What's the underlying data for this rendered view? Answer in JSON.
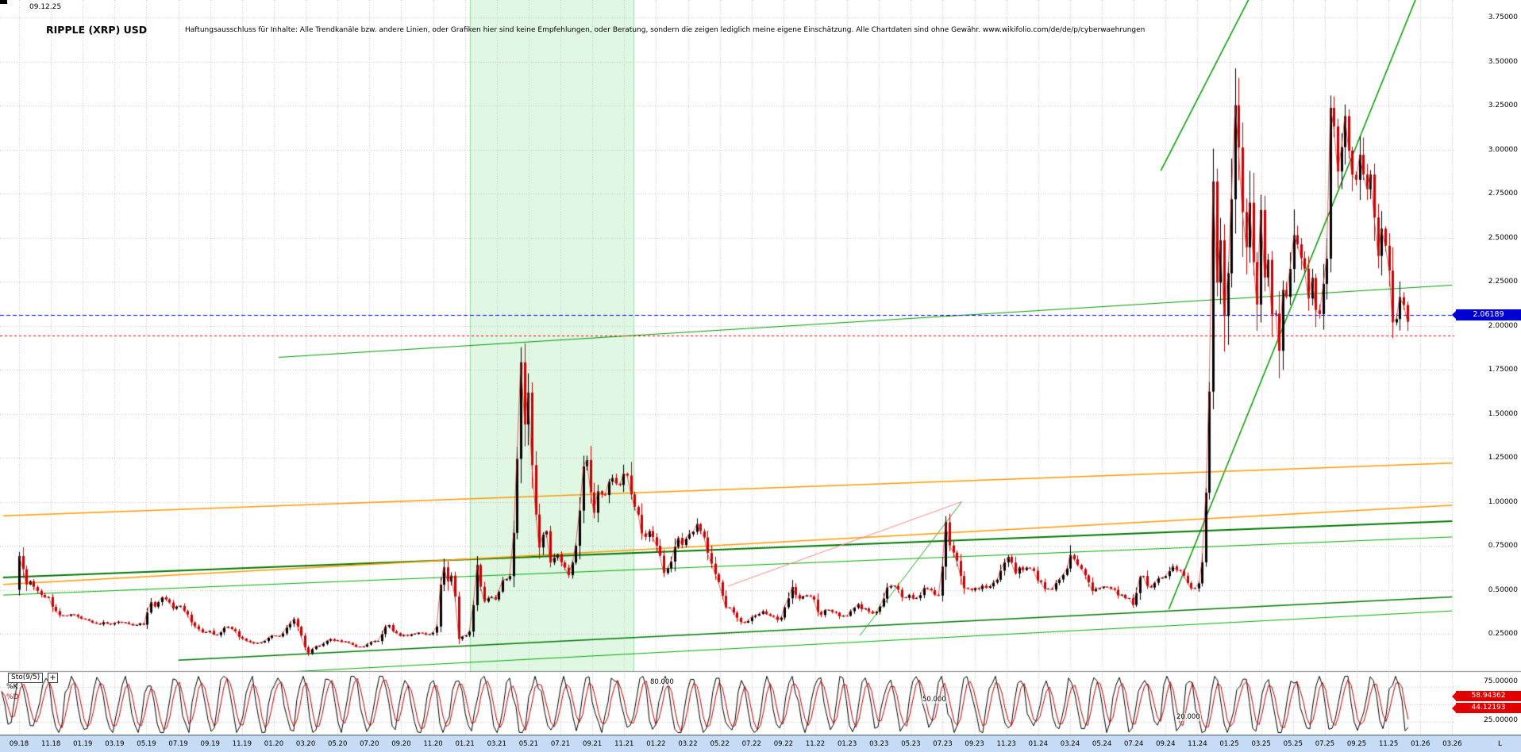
{
  "header": {
    "date": "09.12.25",
    "title": "RIPPLE (XRP) USD",
    "disclaimer": "Haftungsausschluss für Inhalte: Alle Trendkanäle bzw. andere Linien, oder Grafiken hier sind keine Empfehlungen, oder Beratung, sondern die zeigen lediglich meine eigene Einschätzung. Alle Chartdaten sind ohne Gewähr. www.wikifolio.com/de/de/p/cyberwaehrungen"
  },
  "price_axis": {
    "labels": [
      "3.75000",
      "3.50000",
      "3.25000",
      "3.00000",
      "2.75000",
      "2.50000",
      "2.25000",
      "2.00000",
      "1.75000",
      "1.50000",
      "1.25000",
      "1.00000",
      "0.75000",
      "0.50000",
      "0.25000"
    ],
    "current_badge": "2.06189",
    "badge_color": "#0000d0"
  },
  "indicator": {
    "label": "Sto(9/5)",
    "add_button": "+",
    "k_label": "%K",
    "d_label": "%D",
    "level_labels": [
      "80.000",
      "50.000",
      "20.000"
    ],
    "axis_labels": [
      "75.00000",
      "25.00000"
    ],
    "k_value": "58.94362",
    "d_value": "44.12193",
    "k_color": "#000000",
    "d_color": "#cc0000",
    "value_badge_color": "#e00000"
  },
  "time_axis": {
    "labels": [
      "09.18",
      "11.18",
      "01.19",
      "03.19",
      "05.19",
      "07.19",
      "09.19",
      "11.19",
      "01.20",
      "03.20",
      "05.20",
      "07.20",
      "09.20",
      "11.20",
      "01.21",
      "03.21",
      "05.21",
      "07.21",
      "09.21",
      "11.21",
      "01.22",
      "03.22",
      "05.22",
      "07.22",
      "09.22",
      "11.22",
      "01.23",
      "03.23",
      "05.23",
      "07.23",
      "09.23",
      "11.23",
      "01.24",
      "03.24",
      "05.24",
      "07.24",
      "09.24",
      "11.24",
      "01.25",
      "03.25",
      "05.25",
      "07.25",
      "09.25",
      "11.25",
      "01.26",
      "03.26"
    ],
    "background": "#c6dcf4"
  },
  "footer": {
    "right_label": "L"
  },
  "chart_data": {
    "type": "candlestick",
    "title": "RIPPLE (XRP) USD",
    "x_start_month": "09.18",
    "x_end_month": "03.26",
    "ylim": [
      0.05,
      3.8
    ],
    "y_gridstep": 0.25,
    "grid": true,
    "candle_up_color": "#000000",
    "candle_down_color": "#cc0000",
    "close_line_color": "#dd2222",
    "current_price_line": {
      "value": 2.06189,
      "color": "#0000ee",
      "style": "dashed"
    },
    "reference_line": {
      "value": 1.945,
      "color": "#ee0000",
      "style": "dashed"
    },
    "highlight_band": {
      "from": "01.21",
      "to": "11.21",
      "color": "rgba(198,240,205,0.55)",
      "edge_color": "rgba(150,215,160,0.9)"
    },
    "price_anchors": [
      [
        0,
        0.5
      ],
      [
        0.3,
        0.75
      ],
      [
        0.6,
        0.52
      ],
      [
        1,
        0.54
      ],
      [
        1.5,
        0.47
      ],
      [
        2,
        0.46
      ],
      [
        2.6,
        0.36
      ],
      [
        3.2,
        0.36
      ],
      [
        4,
        0.35
      ],
      [
        4.6,
        0.32
      ],
      [
        5.2,
        0.31
      ],
      [
        6,
        0.31
      ],
      [
        6.8,
        0.32
      ],
      [
        7.5,
        0.3
      ],
      [
        8.1,
        0.31
      ],
      [
        8.45,
        0.44
      ],
      [
        8.8,
        0.4
      ],
      [
        9.3,
        0.47
      ],
      [
        9.9,
        0.4
      ],
      [
        10.5,
        0.4
      ],
      [
        11.1,
        0.31
      ],
      [
        11.6,
        0.26
      ],
      [
        12.2,
        0.26
      ],
      [
        12.7,
        0.24
      ],
      [
        13.1,
        0.29
      ],
      [
        13.6,
        0.28
      ],
      [
        14.2,
        0.22
      ],
      [
        15,
        0.19
      ],
      [
        15.6,
        0.21
      ],
      [
        16.1,
        0.24
      ],
      [
        16.6,
        0.23
      ],
      [
        17.1,
        0.29
      ],
      [
        17.5,
        0.33
      ],
      [
        18,
        0.23
      ],
      [
        18.3,
        0.13
      ],
      [
        18.7,
        0.17
      ],
      [
        19.2,
        0.19
      ],
      [
        19.7,
        0.22
      ],
      [
        20.2,
        0.21
      ],
      [
        20.8,
        0.2
      ],
      [
        21.3,
        0.18
      ],
      [
        21.8,
        0.175
      ],
      [
        22.3,
        0.2
      ],
      [
        22.8,
        0.21
      ],
      [
        23.1,
        0.26
      ],
      [
        23.35,
        0.31
      ],
      [
        23.8,
        0.25
      ],
      [
        24.4,
        0.24
      ],
      [
        25,
        0.25
      ],
      [
        25.6,
        0.25
      ],
      [
        26.1,
        0.24
      ],
      [
        26.5,
        0.3
      ],
      [
        26.8,
        0.66
      ],
      [
        27.1,
        0.55
      ],
      [
        27.5,
        0.58
      ],
      [
        27.8,
        0.22
      ],
      [
        28.2,
        0.24
      ],
      [
        28.6,
        0.27
      ],
      [
        29.05,
        0.7
      ],
      [
        29.3,
        0.42
      ],
      [
        29.7,
        0.46
      ],
      [
        30.2,
        0.45
      ],
      [
        30.6,
        0.57
      ],
      [
        31.05,
        0.57
      ],
      [
        31.4,
        0.95
      ],
      [
        31.75,
        1.85
      ],
      [
        32.0,
        1.35
      ],
      [
        32.2,
        1.6
      ],
      [
        32.6,
        0.95
      ],
      [
        32.9,
        0.75
      ],
      [
        33.3,
        0.88
      ],
      [
        33.6,
        0.65
      ],
      [
        34,
        0.7
      ],
      [
        34.5,
        0.62
      ],
      [
        34.8,
        0.58
      ],
      [
        35.2,
        0.74
      ],
      [
        35.75,
        1.3
      ],
      [
        36.05,
        1.1
      ],
      [
        36.3,
        0.93
      ],
      [
        36.6,
        1.05
      ],
      [
        37,
        1.04
      ],
      [
        37.5,
        1.15
      ],
      [
        38,
        1.1
      ],
      [
        38.3,
        1.24
      ],
      [
        38.7,
        0.98
      ],
      [
        39.05,
        0.96
      ],
      [
        39.4,
        0.8
      ],
      [
        39.8,
        0.85
      ],
      [
        40.2,
        0.78
      ],
      [
        40.7,
        0.6
      ],
      [
        41.05,
        0.62
      ],
      [
        41.5,
        0.8
      ],
      [
        42,
        0.76
      ],
      [
        42.8,
        0.87
      ],
      [
        43.2,
        0.8
      ],
      [
        43.8,
        0.62
      ],
      [
        44.3,
        0.5
      ],
      [
        44.55,
        0.4
      ],
      [
        45,
        0.39
      ],
      [
        45.6,
        0.31
      ],
      [
        46.05,
        0.33
      ],
      [
        46.5,
        0.36
      ],
      [
        47,
        0.375
      ],
      [
        47.6,
        0.34
      ],
      [
        48.05,
        0.33
      ],
      [
        48.7,
        0.51
      ],
      [
        49.2,
        0.46
      ],
      [
        49.7,
        0.47
      ],
      [
        50.2,
        0.45
      ],
      [
        50.45,
        0.34
      ],
      [
        51,
        0.4
      ],
      [
        51.8,
        0.34
      ],
      [
        52.3,
        0.36
      ],
      [
        52.8,
        0.42
      ],
      [
        53.2,
        0.39
      ],
      [
        53.8,
        0.37
      ],
      [
        54.3,
        0.4
      ],
      [
        54.8,
        0.54
      ],
      [
        55.2,
        0.52
      ],
      [
        55.7,
        0.46
      ],
      [
        56.2,
        0.47
      ],
      [
        56.7,
        0.44
      ],
      [
        57.1,
        0.53
      ],
      [
        57.6,
        0.48
      ],
      [
        58.05,
        0.47
      ],
      [
        58.4,
        0.9
      ],
      [
        58.7,
        0.72
      ],
      [
        59.1,
        0.68
      ],
      [
        59.5,
        0.51
      ],
      [
        60,
        0.5
      ],
      [
        60.6,
        0.51
      ],
      [
        61.1,
        0.52
      ],
      [
        61.8,
        0.58
      ],
      [
        62.3,
        0.71
      ],
      [
        62.8,
        0.6
      ],
      [
        63.3,
        0.63
      ],
      [
        63.8,
        0.62
      ],
      [
        64.2,
        0.56
      ],
      [
        64.7,
        0.5
      ],
      [
        65.2,
        0.51
      ],
      [
        65.8,
        0.59
      ],
      [
        66.3,
        0.7
      ],
      [
        66.8,
        0.62
      ],
      [
        67.2,
        0.59
      ],
      [
        67.55,
        0.48
      ],
      [
        68.1,
        0.52
      ],
      [
        68.6,
        0.52
      ],
      [
        69.1,
        0.48
      ],
      [
        69.7,
        0.46
      ],
      [
        70.2,
        0.42
      ],
      [
        70.75,
        0.62
      ],
      [
        71.1,
        0.5
      ],
      [
        71.6,
        0.55
      ],
      [
        72.1,
        0.56
      ],
      [
        72.7,
        0.62
      ],
      [
        73.2,
        0.61
      ],
      [
        73.7,
        0.52
      ],
      [
        74.1,
        0.52
      ],
      [
        74.45,
        0.55
      ],
      [
        74.7,
        0.95
      ],
      [
        74.95,
        1.45
      ],
      [
        75.1,
        2.25
      ],
      [
        75.22,
        2.82
      ],
      [
        75.45,
        2.2
      ],
      [
        75.65,
        2.52
      ],
      [
        75.9,
        2.05
      ],
      [
        76.1,
        2.25
      ],
      [
        76.35,
        2.65
      ],
      [
        76.52,
        3.32
      ],
      [
        76.8,
        3.05
      ],
      [
        77.0,
        3.02
      ],
      [
        77.12,
        2.08
      ],
      [
        77.35,
        2.58
      ],
      [
        77.55,
        2.72
      ],
      [
        77.85,
        2.12
      ],
      [
        78.05,
        2.18
      ],
      [
        78.13,
        2.88
      ],
      [
        78.35,
        2.2
      ],
      [
        78.6,
        2.44
      ],
      [
        78.9,
        2.06
      ],
      [
        79.1,
        2.12
      ],
      [
        79.25,
        1.68
      ],
      [
        79.6,
        2.18
      ],
      [
        79.95,
        2.22
      ],
      [
        80.4,
        2.58
      ],
      [
        80.8,
        2.32
      ],
      [
        81.2,
        2.2
      ],
      [
        81.5,
        2.28
      ],
      [
        81.75,
        1.94
      ],
      [
        82.1,
        2.22
      ],
      [
        82.45,
        2.42
      ],
      [
        82.62,
        3.52
      ],
      [
        82.85,
        3.12
      ],
      [
        83.05,
        2.9
      ],
      [
        83.15,
        2.78
      ],
      [
        83.45,
        3.28
      ],
      [
        83.8,
        2.82
      ],
      [
        84.2,
        2.86
      ],
      [
        84.5,
        3.02
      ],
      [
        84.8,
        2.83
      ],
      [
        85.1,
        2.88
      ],
      [
        85.28,
        2.98
      ],
      [
        85.4,
        2.22
      ],
      [
        85.7,
        2.55
      ],
      [
        85.95,
        2.45
      ],
      [
        86.25,
        2.28
      ],
      [
        86.6,
        1.93
      ],
      [
        86.85,
        2.16
      ],
      [
        87.1,
        2.18
      ],
      [
        87.35,
        2.06
      ]
    ],
    "trend_lines": [
      {
        "name": "long-resistance",
        "color": "#009900",
        "width": 1,
        "from": [
          16.3,
          1.82
        ],
        "to": [
          90,
          2.23
        ]
      },
      {
        "name": "steep-channel-upper",
        "color": "#009900",
        "width": 1.5,
        "from": [
          71.7,
          2.88
        ],
        "to": [
          77.6,
          3.92
        ]
      },
      {
        "name": "steep-channel-lower",
        "color": "#009900",
        "width": 1.5,
        "from": [
          72.2,
          0.39
        ],
        "to": [
          88,
          3.92
        ]
      },
      {
        "name": "support-upper",
        "color": "#007700",
        "width": 2,
        "from": [
          -1,
          0.57
        ],
        "to": [
          90,
          0.89
        ]
      },
      {
        "name": "support-upper-2",
        "color": "#00aa00",
        "width": 1,
        "from": [
          -1,
          0.47
        ],
        "to": [
          90,
          0.8
        ]
      },
      {
        "name": "support-lower",
        "color": "#007700",
        "width": 1.5,
        "from": [
          10,
          0.1
        ],
        "to": [
          90,
          0.46
        ]
      },
      {
        "name": "support-lower-2",
        "color": "#00aa00",
        "width": 1,
        "from": [
          14,
          0.02
        ],
        "to": [
          90,
          0.38
        ]
      },
      {
        "name": "wedge-lower",
        "color": "#22aa22",
        "width": 1,
        "from": [
          52.8,
          0.24
        ],
        "to": [
          59.2,
          1.0
        ]
      },
      {
        "name": "orange-channel-upper",
        "color": "#ff9900",
        "width": 1.5,
        "from": [
          -1,
          0.92
        ],
        "to": [
          90,
          1.22
        ]
      },
      {
        "name": "orange-channel-lower",
        "color": "#ff9900",
        "width": 1.5,
        "from": [
          -1,
          0.53
        ],
        "to": [
          90,
          0.98
        ]
      },
      {
        "name": "wedge-upper",
        "color": "#ff8888",
        "width": 1,
        "from": [
          44.5,
          0.52
        ],
        "to": [
          59.2,
          1.0
        ]
      }
    ],
    "stochastic": {
      "label": "Sto(9/5)",
      "levels": [
        80,
        50,
        20
      ],
      "axis_values": [
        75,
        25
      ],
      "k": 58.94362,
      "d": 44.12193
    }
  }
}
